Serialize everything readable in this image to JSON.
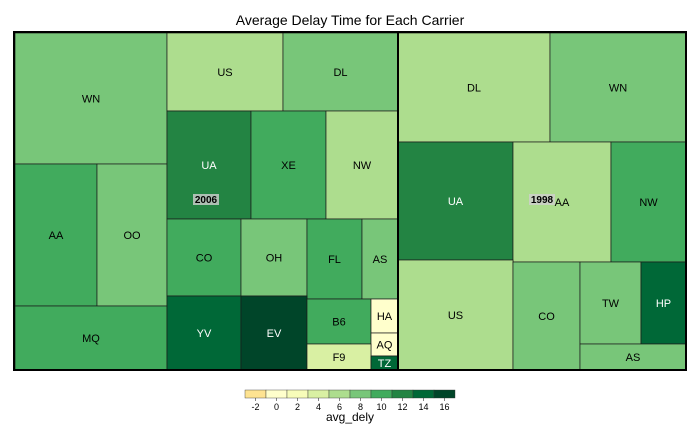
{
  "chart_data": {
    "type": "treemap",
    "title": "Average Delay Time for Each Carrier",
    "groups": [
      {
        "name": "2006",
        "tiles": [
          {
            "label": "WN",
            "value": 8.5
          },
          {
            "label": "AA",
            "value": 10.5
          },
          {
            "label": "OO",
            "value": 7.5
          },
          {
            "label": "MQ",
            "value": 10.5
          },
          {
            "label": "US",
            "value": 6.5
          },
          {
            "label": "DL",
            "value": 7.5
          },
          {
            "label": "UA",
            "value": 12.0
          },
          {
            "label": "XE",
            "value": 9.5
          },
          {
            "label": "NW",
            "value": 5.5
          },
          {
            "label": "CO",
            "value": 10.5
          },
          {
            "label": "OH",
            "value": 8.5
          },
          {
            "label": "FL",
            "value": 10.5
          },
          {
            "label": "AS",
            "value": 8.5
          },
          {
            "label": "YV",
            "value": 14.0
          },
          {
            "label": "EV",
            "value": 16.5
          },
          {
            "label": "B6",
            "value": 10.5
          },
          {
            "label": "HA",
            "value": -1.0
          },
          {
            "label": "AQ",
            "value": -1.0
          },
          {
            "label": "F9",
            "value": 4.5
          },
          {
            "label": "TZ",
            "value": 13.5
          }
        ]
      },
      {
        "name": "1998",
        "tiles": [
          {
            "label": "DL",
            "value": 5.5
          },
          {
            "label": "WN",
            "value": 7.5
          },
          {
            "label": "UA",
            "value": 11.5
          },
          {
            "label": "AA",
            "value": 5.5
          },
          {
            "label": "NW",
            "value": 9.5
          },
          {
            "label": "US",
            "value": 5.5
          },
          {
            "label": "CO",
            "value": 7.5
          },
          {
            "label": "TW",
            "value": 8.5
          },
          {
            "label": "HP",
            "value": 14.0
          },
          {
            "label": "AS",
            "value": 7.5
          }
        ]
      }
    ],
    "legend": {
      "title": "avg_dely",
      "ticks": [
        "-2",
        "0",
        "2",
        "4",
        "6",
        "8",
        "10",
        "12",
        "14",
        "16"
      ],
      "scale_min": -3,
      "scale_max": 17,
      "colors": [
        "#FEE391",
        "#FFFFCC",
        "#F7FCB9",
        "#D9F0A3",
        "#ADDD8E",
        "#78C679",
        "#41AB5D",
        "#238443",
        "#006837",
        "#004529"
      ]
    }
  }
}
